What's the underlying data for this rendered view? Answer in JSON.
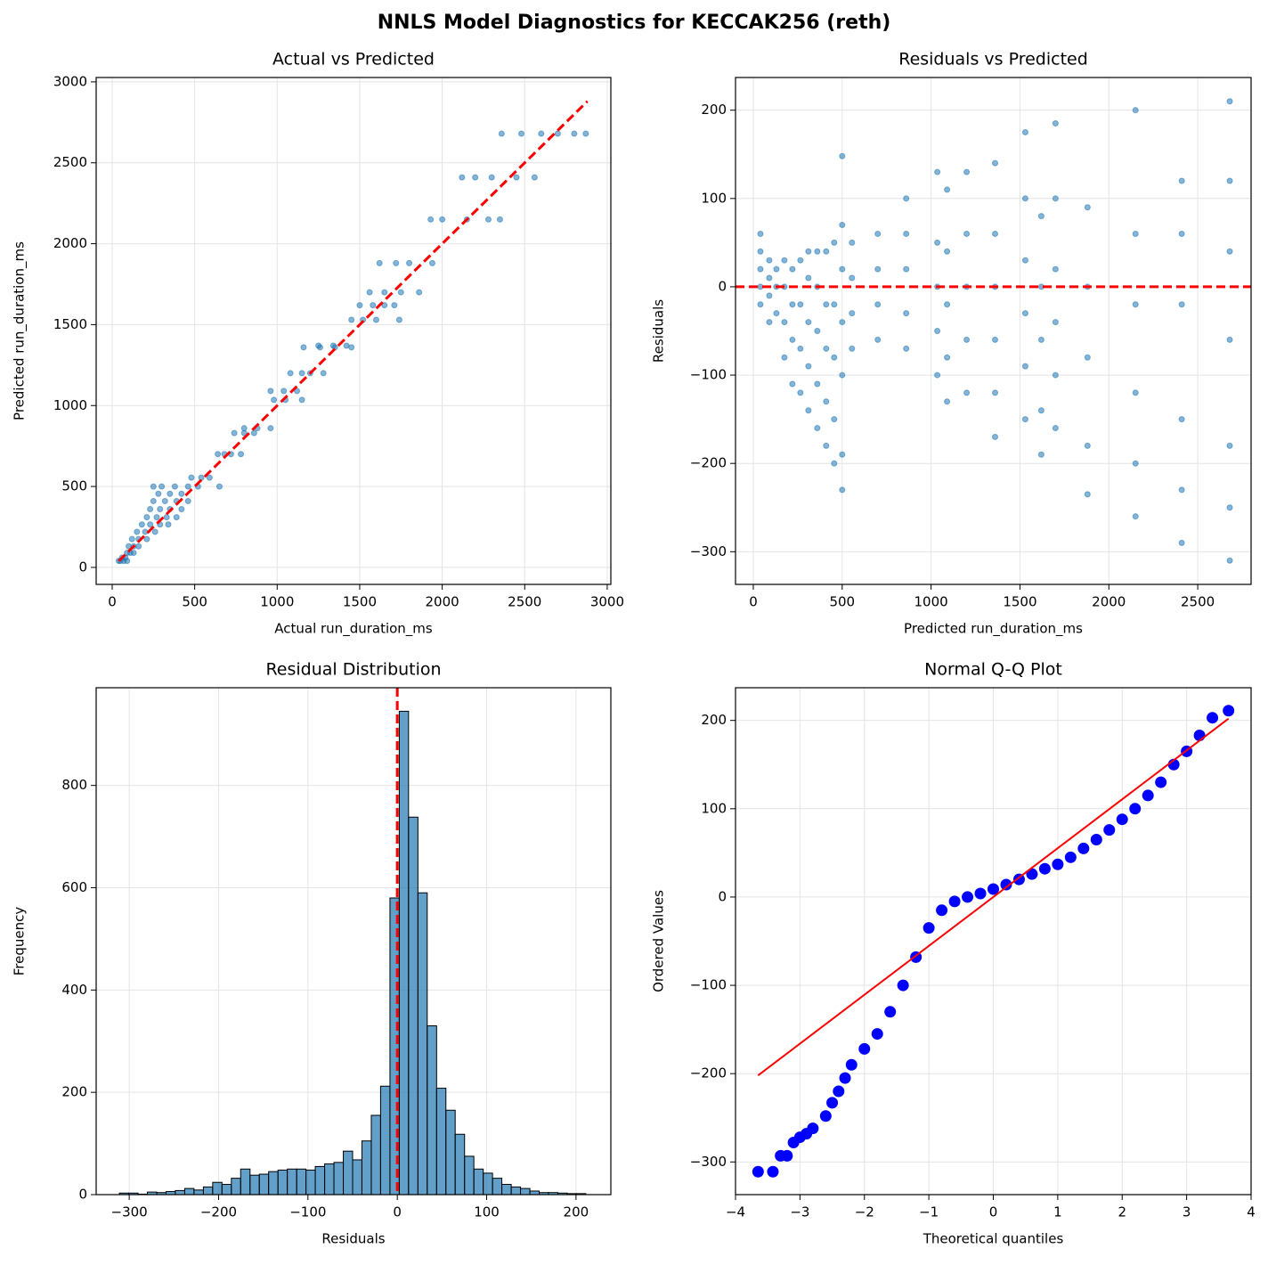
{
  "title": "NNLS Model Diagnostics for KECCAK256 (reth)",
  "chart_data": [
    {
      "type": "scatter",
      "title": "Actual vs Predicted",
      "x_label": "Actual run_duration_ms",
      "y_label": "Predicted run_duration_ms",
      "color": "#1f77b4",
      "grid": true,
      "xlim": [
        -97,
        3022
      ],
      "ylim": [
        -105,
        3027
      ],
      "xticks": [
        0,
        500,
        1000,
        1500,
        2000,
        2500,
        3000
      ],
      "yticks": [
        0,
        500,
        1000,
        1500,
        2000,
        2500,
        3000
      ],
      "x": [
        40,
        50,
        70,
        90,
        60,
        80,
        90,
        110,
        130,
        100,
        130,
        160,
        120,
        160,
        210,
        150,
        200,
        260,
        180,
        230,
        290,
        340,
        210,
        270,
        330,
        390,
        230,
        290,
        350,
        420,
        250,
        320,
        390,
        460,
        280,
        350,
        420,
        250,
        300,
        380,
        460,
        520,
        650,
        480,
        540,
        590,
        640,
        680,
        720,
        780,
        740,
        800,
        860,
        800,
        880,
        960,
        980,
        1050,
        1150,
        960,
        1040,
        1120,
        1080,
        1150,
        1200,
        1280,
        1160,
        1260,
        1350,
        1450,
        1250,
        1340,
        1420,
        1450,
        1520,
        1600,
        1740,
        1500,
        1580,
        1650,
        1710,
        1560,
        1650,
        1750,
        1860,
        1620,
        1720,
        1800,
        1940,
        1930,
        2000,
        2150,
        2280,
        2350,
        2120,
        2200,
        2300,
        2450,
        2560,
        2360,
        2480,
        2600,
        2700,
        2800,
        2870
      ],
      "values": [
        40,
        40,
        40,
        40,
        60,
        60,
        90,
        90,
        90,
        130,
        130,
        130,
        175,
        175,
        175,
        220,
        220,
        220,
        265,
        265,
        265,
        265,
        310,
        310,
        310,
        310,
        360,
        360,
        360,
        360,
        410,
        410,
        410,
        410,
        455,
        455,
        455,
        500,
        500,
        500,
        500,
        500,
        500,
        555,
        555,
        555,
        700,
        700,
        700,
        700,
        830,
        830,
        830,
        860,
        860,
        860,
        1035,
        1035,
        1035,
        1090,
        1090,
        1090,
        1200,
        1200,
        1200,
        1200,
        1360,
        1360,
        1360,
        1360,
        1370,
        1370,
        1370,
        1530,
        1530,
        1530,
        1530,
        1620,
        1620,
        1620,
        1620,
        1700,
        1700,
        1700,
        1700,
        1880,
        1880,
        1880,
        1880,
        2150,
        2150,
        2150,
        2150,
        2150,
        2410,
        2410,
        2410,
        2410,
        2410,
        2680,
        2680,
        2680,
        2680,
        2680,
        2680
      ],
      "ref_line": {
        "color": "#ff0000",
        "line_style": "dashed",
        "x": [
          40,
          2880
        ],
        "values": [
          40,
          2880
        ]
      }
    },
    {
      "type": "scatter",
      "title": "Residuals vs Predicted",
      "x_label": "Predicted run_duration_ms",
      "y_label": "Residuals",
      "color": "#1f77b4",
      "grid": true,
      "xlim": [
        -100,
        2800
      ],
      "ylim": [
        -337,
        237
      ],
      "xticks": [
        0,
        500,
        1000,
        1500,
        2000,
        2500
      ],
      "yticks": [
        {
          "value": -300,
          "label": "−300"
        },
        {
          "value": -200,
          "label": "−200"
        },
        {
          "value": -100,
          "label": "−100"
        },
        0,
        100,
        200
      ],
      "x": [
        40,
        40,
        40,
        40,
        40,
        90,
        90,
        90,
        90,
        130,
        130,
        130,
        175,
        175,
        175,
        175,
        220,
        220,
        220,
        220,
        265,
        265,
        265,
        265,
        310,
        310,
        310,
        310,
        310,
        360,
        360,
        360,
        360,
        360,
        410,
        410,
        410,
        410,
        410,
        455,
        455,
        455,
        455,
        455,
        500,
        500,
        500,
        500,
        500,
        500,
        500,
        555,
        555,
        555,
        555,
        700,
        700,
        700,
        700,
        860,
        860,
        860,
        860,
        860,
        1035,
        1035,
        1035,
        1035,
        1035,
        1090,
        1090,
        1090,
        1090,
        1090,
        1200,
        1200,
        1200,
        1200,
        1200,
        1360,
        1360,
        1360,
        1360,
        1360,
        1360,
        1530,
        1530,
        1530,
        1530,
        1530,
        1530,
        1620,
        1620,
        1620,
        1620,
        1620,
        1700,
        1700,
        1700,
        1700,
        1700,
        1700,
        1880,
        1880,
        1880,
        1880,
        1880,
        2150,
        2150,
        2150,
        2150,
        2150,
        2150,
        2410,
        2410,
        2410,
        2410,
        2410,
        2410,
        2680,
        2680,
        2680,
        2680,
        2680,
        2680,
        2680
      ],
      "values": [
        -20,
        0,
        20,
        40,
        60,
        -40,
        -10,
        10,
        30,
        -30,
        0,
        20,
        -80,
        -40,
        0,
        30,
        -110,
        -60,
        -20,
        20,
        -120,
        -70,
        -20,
        30,
        -140,
        -90,
        -40,
        10,
        40,
        -160,
        -110,
        -50,
        0,
        40,
        -180,
        -130,
        -70,
        -20,
        40,
        -200,
        -150,
        -80,
        -20,
        50,
        -230,
        -190,
        -100,
        -40,
        20,
        70,
        148,
        -70,
        -30,
        10,
        50,
        -60,
        -20,
        20,
        60,
        -70,
        -30,
        20,
        60,
        100,
        -100,
        -50,
        0,
        50,
        130,
        -130,
        -80,
        -20,
        40,
        110,
        -120,
        -60,
        0,
        60,
        130,
        -170,
        -120,
        -60,
        0,
        60,
        140,
        -150,
        -90,
        -30,
        30,
        100,
        175,
        -190,
        -140,
        -60,
        0,
        80,
        -160,
        -100,
        -40,
        20,
        100,
        185,
        -235,
        -180,
        -80,
        0,
        90,
        -260,
        -200,
        -120,
        -20,
        60,
        200,
        -290,
        -230,
        -150,
        -20,
        60,
        120,
        -310,
        -250,
        -180,
        -60,
        40,
        120,
        210
      ],
      "ref_y": 0,
      "ref_color": "#ff0000"
    },
    {
      "type": "histogram",
      "title": "Residual Distribution",
      "x_label": "Residuals",
      "y_label": "Frequency",
      "color": "#1f77b4",
      "grid": true,
      "xlim": [
        -337,
        239
      ],
      "ylim": [
        0,
        991
      ],
      "xticks": [
        {
          "value": -300,
          "label": "−300"
        },
        {
          "value": -200,
          "label": "−200"
        },
        {
          "value": -100,
          "label": "−100"
        },
        0,
        100,
        200
      ],
      "yticks": [
        0,
        200,
        400,
        600,
        800
      ],
      "bins": [
        -311.0,
        -300.6,
        -290.1,
        -279.7,
        -269.2,
        -258.8,
        -248.4,
        -237.9,
        -227.5,
        -217.0,
        -206.6,
        -196.2,
        -185.7,
        -175.3,
        -164.8,
        -154.4,
        -144.0,
        -133.5,
        -123.1,
        -112.6,
        -102.2,
        -91.8,
        -81.3,
        -70.9,
        -60.4,
        -50.0,
        -39.6,
        -29.1,
        -18.7,
        -8.2,
        2.2,
        12.6,
        23.1,
        33.5,
        44.0,
        54.4,
        64.8,
        75.3,
        85.7,
        96.2,
        106.6,
        117.0,
        127.5,
        137.9,
        148.4,
        158.8,
        169.2,
        179.7,
        190.1,
        200.6,
        211.0
      ],
      "counts": [
        3,
        3,
        1,
        5,
        4,
        6,
        8,
        12,
        9,
        15,
        24,
        20,
        32,
        50,
        38,
        40,
        45,
        48,
        50,
        50,
        48,
        55,
        60,
        63,
        85,
        68,
        105,
        155,
        212,
        580,
        945,
        738,
        590,
        330,
        208,
        165,
        118,
        75,
        50,
        42,
        32,
        20,
        15,
        12,
        7,
        4,
        4,
        3,
        2,
        2
      ],
      "ref_x": 0,
      "ref_color": "#ff0000"
    },
    {
      "type": "scatter",
      "title": "Normal Q-Q Plot",
      "x_label": "Theoretical quantiles",
      "y_label": "Ordered Values",
      "color": "#0000ff",
      "grid": true,
      "xlim": [
        -4,
        4
      ],
      "ylim": [
        -337,
        237
      ],
      "xticks": [
        {
          "value": -4,
          "label": "−4"
        },
        {
          "value": -3,
          "label": "−3"
        },
        {
          "value": -2,
          "label": "−2"
        },
        {
          "value": -1,
          "label": "−1"
        },
        0,
        1,
        2,
        3,
        4
      ],
      "yticks": [
        {
          "value": -300,
          "label": "−300"
        },
        {
          "value": -200,
          "label": "−200"
        },
        {
          "value": -100,
          "label": "−100"
        },
        0,
        100,
        200
      ],
      "x": [
        -3.65,
        -3.42,
        -3.3,
        -3.2,
        -3.1,
        -3.0,
        -2.9,
        -2.8,
        -2.6,
        -2.5,
        -2.4,
        -2.3,
        -2.2,
        -2.0,
        -1.8,
        -1.6,
        -1.4,
        -1.2,
        -1.0,
        -0.8,
        -0.6,
        -0.4,
        -0.2,
        0,
        0.2,
        0.4,
        0.6,
        0.8,
        1.0,
        1.2,
        1.4,
        1.6,
        1.8,
        2.0,
        2.2,
        2.4,
        2.6,
        2.8,
        3.0,
        3.2,
        3.4,
        3.65
      ],
      "values": [
        -311,
        -311,
        -293,
        -293,
        -278,
        -272,
        -268,
        -262,
        -248,
        -233,
        -220,
        -205,
        -190,
        -172,
        -155,
        -130,
        -100,
        -68,
        -35,
        -15,
        -5,
        0,
        4,
        9,
        14,
        20,
        26,
        32,
        37,
        45,
        55,
        65,
        76,
        88,
        100,
        115,
        130,
        150,
        165,
        183,
        203,
        211
      ],
      "ref_line": {
        "color": "#ff0000",
        "line_style": "solid",
        "x": [
          -3.65,
          3.65
        ],
        "values": [
          -202,
          202
        ]
      }
    }
  ]
}
